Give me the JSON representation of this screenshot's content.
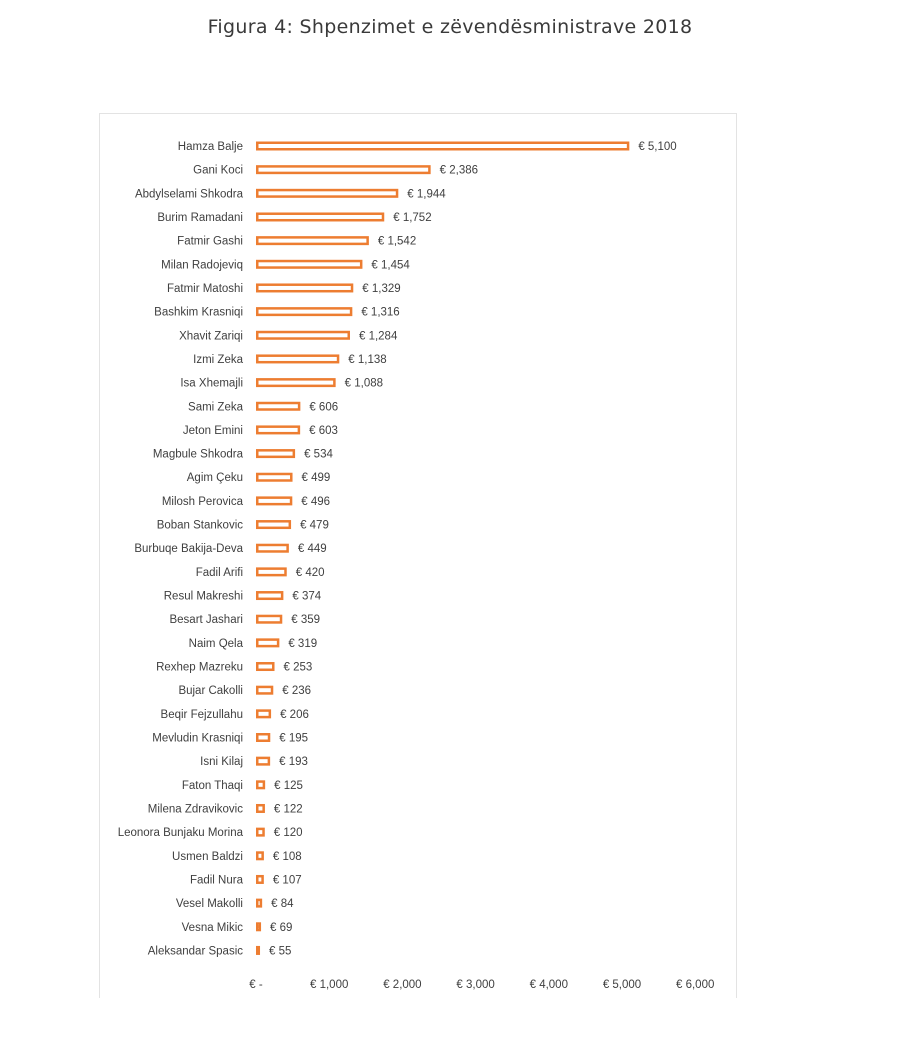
{
  "figure": {
    "title": "Figura 4: Shpenzimet e zëvendësministrave 2018"
  },
  "chart_data": {
    "type": "bar",
    "orientation": "horizontal",
    "title": "",
    "xlabel": "",
    "ylabel": "",
    "xlim": [
      0,
      6000
    ],
    "bar_color": "#ED7D31",
    "categories": [
      "Hamza Balje",
      "Gani Koci",
      "Abdylselami Shkodra",
      "Burim Ramadani",
      "Fatmir Gashi",
      "Milan Radojeviq",
      "Fatmir Matoshi",
      "Bashkim Krasniqi",
      "Xhavit Zariqi",
      "Izmi Zeka",
      "Isa Xhemajli",
      "Sami Zeka",
      "Jeton Emini",
      "Magbule Shkodra",
      "Agim Çeku",
      "Milosh Perovica",
      "Boban Stankovic",
      "Burbuqe Bakija-Deva",
      "Fadil Arifi",
      "Resul Makreshi",
      "Besart Jashari",
      "Naim Qela",
      "Rexhep Mazreku",
      "Bujar Cakolli",
      "Beqir Fejzullahu",
      "Mevludin Krasniqi",
      "Isni Kilaj",
      "Faton Thaqi",
      "Milena Zdravikovic",
      "Leonora Bunjaku Morina",
      "Usmen Baldzi",
      "Fadil Nura",
      "Vesel Makolli",
      "Vesna Mikic",
      "Aleksandar Spasic"
    ],
    "values": [
      5100,
      2386,
      1944,
      1752,
      1542,
      1454,
      1329,
      1316,
      1284,
      1138,
      1088,
      606,
      603,
      534,
      499,
      496,
      479,
      449,
      420,
      374,
      359,
      319,
      253,
      236,
      206,
      195,
      193,
      125,
      122,
      120,
      108,
      107,
      84,
      69,
      55
    ],
    "value_labels": [
      "€ 5,100",
      "€ 2,386",
      "€ 1,944",
      "€ 1,752",
      "€ 1,542",
      "€ 1,454",
      "€ 1,329",
      "€ 1,316",
      "€ 1,284",
      "€ 1,138",
      "€ 1,088",
      "€ 606",
      "€ 603",
      "€ 534",
      "€ 499",
      "€ 496",
      "€ 479",
      "€ 449",
      "€ 420",
      "€ 374",
      "€ 359",
      "€ 319",
      "€ 253",
      "€ 236",
      "€ 206",
      "€ 195",
      "€ 193",
      "€ 125",
      "€ 122",
      "€ 120",
      "€ 108",
      "€ 107",
      "€ 84",
      "€ 69",
      "€ 55"
    ],
    "x_ticks": [
      0,
      1000,
      2000,
      3000,
      4000,
      5000,
      6000
    ],
    "x_tick_labels": [
      "€ -",
      "€ 1,000",
      "€ 2,000",
      "€ 3,000",
      "€ 4,000",
      "€ 5,000",
      "€ 6,000"
    ],
    "grid": false,
    "legend": "none"
  }
}
